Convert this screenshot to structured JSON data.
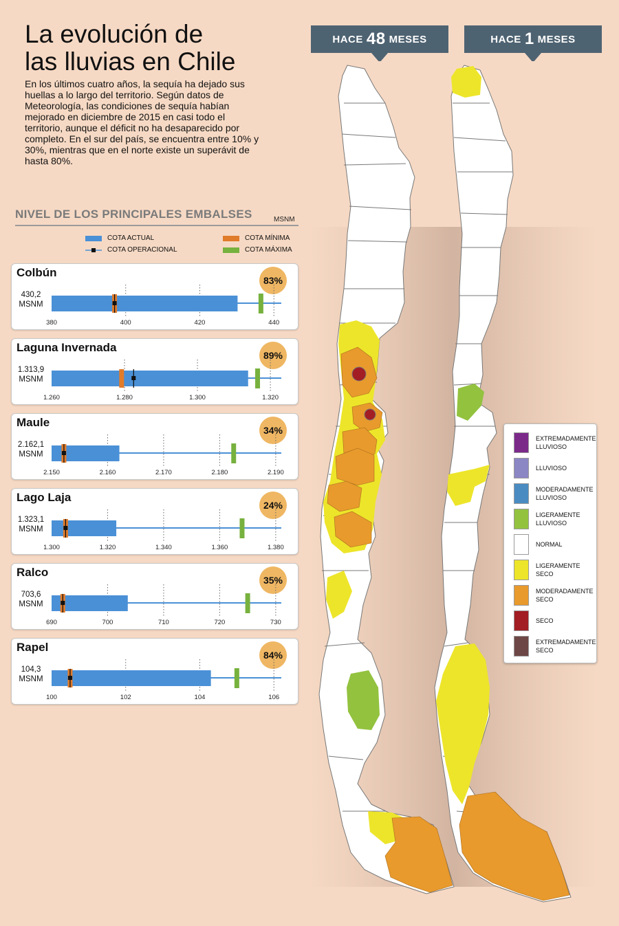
{
  "title_line1": "La evolución de",
  "title_line2": "las lluvias en Chile",
  "intro": "En los últimos cuatro años, la sequía ha dejado sus huellas a lo largo del territorio. Según datos de Meteorología, las condiciones de sequía habían mejorado en diciembre de 2015 en casi todo el territorio, aunque el déficit no ha desaparecido por completo. En el sur del país, se encuentra entre 10% y 30%, mientras que en el norte existe un superávit de hasta 80%.",
  "section": {
    "title": "NIVEL DE LOS PRINCIPALES EMBALSES",
    "unit": "MSNM"
  },
  "legend": {
    "actual": "COTA ACTUAL",
    "operacional": "COTA OPERACIONAL",
    "minima": "COTA MÍNIMA",
    "maxima": "COTA MÁXIMA"
  },
  "colors": {
    "actual": "#4a90d6",
    "minima": "#e07b2a",
    "maxima": "#77b13e",
    "operacional": "#111111",
    "pct_badge": "#efb763",
    "banner": "#4e6372"
  },
  "chart_data": {
    "type": "bar",
    "orientation": "horizontal",
    "unit": "MSNM",
    "reservoirs": [
      {
        "name": "Colbún",
        "value_label": "430,2",
        "unit_label": "MSNM",
        "pct_label": "83%",
        "actual": 430.2,
        "minima": 397,
        "operacional": 397,
        "maxima": 436.5,
        "axis_min": 380,
        "axis_max": 442,
        "ticks": [
          380,
          400,
          420,
          440
        ],
        "tick_labels": [
          "380",
          "400",
          "420",
          "440"
        ]
      },
      {
        "name": "Laguna Invernada",
        "value_label": "1.313,9",
        "unit_label": "MSNM",
        "pct_label": "89%",
        "actual": 1313.9,
        "minima": 1279.2,
        "operacional": 1282.5,
        "maxima": 1316.5,
        "axis_min": 1260,
        "axis_max": 1323,
        "ticks": [
          1260,
          1280,
          1300,
          1320
        ],
        "tick_labels": [
          "1.260",
          "1.280",
          "1.300",
          "1.320"
        ]
      },
      {
        "name": "Maule",
        "value_label": "2.162,1",
        "unit_label": "MSNM",
        "pct_label": "34%",
        "actual": 2162.1,
        "minima": 2152.2,
        "operacional": 2152.2,
        "maxima": 2182.5,
        "axis_min": 2150,
        "axis_max": 2191,
        "ticks": [
          2150,
          2160,
          2170,
          2180,
          2190
        ],
        "tick_labels": [
          "2.150",
          "2.160",
          "2.170",
          "2.180",
          "2.190"
        ]
      },
      {
        "name": "Lago Laja",
        "value_label": "1.323,1",
        "unit_label": "MSNM",
        "pct_label": "24%",
        "actual": 1323.1,
        "minima": 1305,
        "operacional": 1305,
        "maxima": 1368,
        "axis_min": 1300,
        "axis_max": 1382,
        "ticks": [
          1300,
          1320,
          1340,
          1360,
          1380
        ],
        "tick_labels": [
          "1.300",
          "1.320",
          "1.340",
          "1.360",
          "1.380"
        ]
      },
      {
        "name": "Ralco",
        "value_label": "703,6",
        "unit_label": "MSNM",
        "pct_label": "35%",
        "actual": 703.6,
        "minima": 692,
        "operacional": 692,
        "maxima": 725,
        "axis_min": 690,
        "axis_max": 731,
        "ticks": [
          690,
          700,
          710,
          720,
          730
        ],
        "tick_labels": [
          "690",
          "700",
          "710",
          "720",
          "730"
        ]
      },
      {
        "name": "Rapel",
        "value_label": "104,3",
        "unit_label": "MSNM",
        "pct_label": "84%",
        "actual": 104.3,
        "minima": 100.5,
        "operacional": 100.5,
        "maxima": 105,
        "axis_min": 100,
        "axis_max": 106.2,
        "ticks": [
          100,
          102,
          104,
          106
        ],
        "tick_labels": [
          "100",
          "102",
          "104",
          "106"
        ]
      }
    ]
  },
  "maps": {
    "left_banner": {
      "prefix": "HACE",
      "number": "48",
      "suffix": "MESES"
    },
    "right_banner": {
      "prefix": "HACE",
      "number": "1",
      "suffix": "MESES"
    }
  },
  "map_legend": [
    {
      "label": "EXTREMADAMENTE LLUVIOSO",
      "color": "#7b2a8a"
    },
    {
      "label": "LLUVIOSO",
      "color": "#8b86c4"
    },
    {
      "label": "MODERADAMENTE LLUVIOSO",
      "color": "#4a8cc2"
    },
    {
      "label": "LIGERAMENTE LLUVIOSO",
      "color": "#93c23f"
    },
    {
      "label": "NORMAL",
      "color": "#ffffff"
    },
    {
      "label": "LIGERAMENTE SECO",
      "color": "#ede52a"
    },
    {
      "label": "MODERADAMENTE SECO",
      "color": "#e89a2c"
    },
    {
      "label": "SECO",
      "color": "#a21d24"
    },
    {
      "label": "EXTREMADAMENTE SECO",
      "color": "#6d4745"
    }
  ]
}
